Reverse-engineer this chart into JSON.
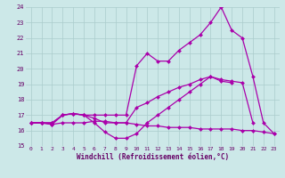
{
  "xlabel": "Windchill (Refroidissement éolien,°C)",
  "xlim": [
    -0.5,
    23.5
  ],
  "ylim": [
    15,
    24
  ],
  "yticks": [
    15,
    16,
    17,
    18,
    19,
    20,
    21,
    22,
    23,
    24
  ],
  "xticks": [
    0,
    1,
    2,
    3,
    4,
    5,
    6,
    7,
    8,
    9,
    10,
    11,
    12,
    13,
    14,
    15,
    16,
    17,
    18,
    19,
    20,
    21,
    22,
    23
  ],
  "bg_color": "#cce8e8",
  "line_color": "#aa00aa",
  "grid_color": "#aacccc",
  "series": [
    {
      "x": [
        0,
        1,
        2,
        3,
        4,
        5,
        6,
        7,
        8,
        9,
        10,
        11,
        12,
        13,
        14,
        15,
        16,
        17,
        18,
        19,
        20,
        21,
        22,
        23
      ],
      "y": [
        16.5,
        16.5,
        16.4,
        16.5,
        16.5,
        16.5,
        16.6,
        16.6,
        16.5,
        16.5,
        16.4,
        16.3,
        16.3,
        16.2,
        16.2,
        16.2,
        16.1,
        16.1,
        16.1,
        16.1,
        16.0,
        16.0,
        15.9,
        15.8
      ],
      "marker": true
    },
    {
      "x": [
        0,
        1,
        2,
        3,
        4,
        5,
        6,
        7,
        8,
        9,
        10,
        11,
        12,
        13,
        14,
        15,
        16,
        17,
        18,
        19,
        20,
        21,
        22,
        23
      ],
      "y": [
        16.5,
        16.5,
        16.4,
        17.0,
        17.1,
        17.0,
        16.5,
        15.9,
        15.5,
        15.5,
        15.8,
        16.5,
        17.0,
        17.5,
        18.0,
        18.5,
        19.0,
        19.5,
        19.2,
        19.1,
        null,
        null,
        null,
        null
      ],
      "marker": true
    },
    {
      "x": [
        0,
        1,
        2,
        3,
        4,
        5,
        6,
        7,
        8,
        9,
        10,
        11,
        12,
        13,
        14,
        15,
        16,
        17,
        18,
        19,
        20,
        21,
        22,
        23
      ],
      "y": [
        16.5,
        16.5,
        16.5,
        17.0,
        17.1,
        17.0,
        16.8,
        16.5,
        16.5,
        16.5,
        17.5,
        17.8,
        18.2,
        18.5,
        18.8,
        19.0,
        19.3,
        19.5,
        19.3,
        19.2,
        19.1,
        16.5,
        null,
        null
      ],
      "marker": true
    },
    {
      "x": [
        0,
        1,
        2,
        3,
        4,
        5,
        6,
        7,
        8,
        9,
        10,
        11,
        12,
        13,
        14,
        15,
        16,
        17,
        18,
        19,
        20,
        21,
        22,
        23
      ],
      "y": [
        16.5,
        16.5,
        16.5,
        17.0,
        17.1,
        17.0,
        17.0,
        17.0,
        17.0,
        17.0,
        20.2,
        21.0,
        20.5,
        20.5,
        21.2,
        21.7,
        22.2,
        23.0,
        24.0,
        22.5,
        22.0,
        19.5,
        16.5,
        15.8
      ],
      "marker": true
    }
  ]
}
